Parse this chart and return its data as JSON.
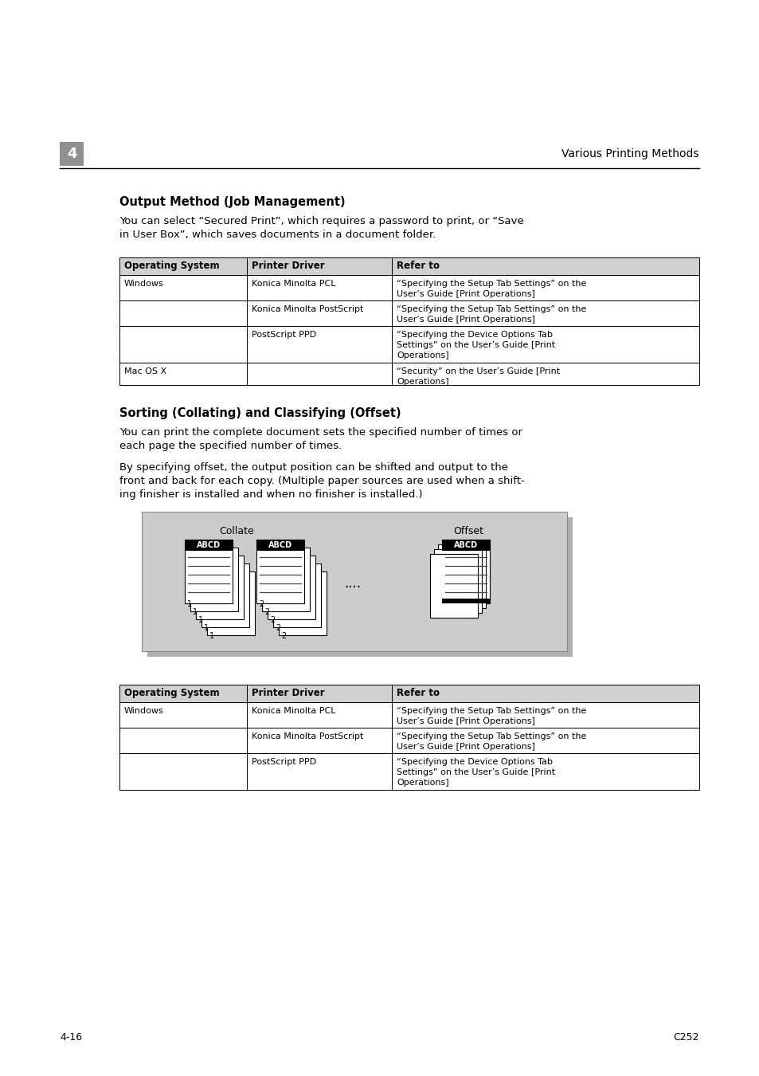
{
  "page_bg": "#ffffff",
  "chapter_num": "4",
  "chapter_title": "Various Printing Methods",
  "section1_title": "Output Method (Job Management)",
  "section1_body1a": "You can select “Secured Print”, which requires a password to print, or “Save",
  "section1_body1b": "in User Box”, which saves documents in a document folder.",
  "table1_headers": [
    "Operating System",
    "Printer Driver",
    "Refer to"
  ],
  "table1_rows": [
    [
      "Windows",
      "Konica Minolta PCL",
      "“Specifying the Setup Tab Settings” on the\nUser’s Guide [Print Operations]"
    ],
    [
      "",
      "Konica Minolta PostScript",
      "“Specifying the Setup Tab Settings” on the\nUser’s Guide [Print Operations]"
    ],
    [
      "",
      "PostScript PPD",
      "“Specifying the Device Options Tab\nSettings” on the User’s Guide [Print\nOperations]"
    ],
    [
      "Mac OS X",
      "",
      "“Security” on the User’s Guide [Print\nOperations]"
    ]
  ],
  "section2_title": "Sorting (Collating) and Classifying (Offset)",
  "section2_body1a": "You can print the complete document sets the specified number of times or",
  "section2_body1b": "each page the specified number of times.",
  "section2_body2a": "By specifying offset, the output position can be shifted and output to the",
  "section2_body2b": "front and back for each copy. (Multiple paper sources are used when a shift-",
  "section2_body2c": "ing finisher is installed and when no finisher is installed.)",
  "diagram_label_collate": "Collate",
  "diagram_label_offset": "Offset",
  "table2_headers": [
    "Operating System",
    "Printer Driver",
    "Refer to"
  ],
  "table2_rows": [
    [
      "Windows",
      "Konica Minolta PCL",
      "“Specifying the Setup Tab Settings” on the\nUser’s Guide [Print Operations]"
    ],
    [
      "",
      "Konica Minolta PostScript",
      "“Specifying the Setup Tab Settings” on the\nUser’s Guide [Print Operations]"
    ],
    [
      "",
      "PostScript PPD",
      "“Specifying the Device Options Tab\nSettings” on the User’s Guide [Print\nOperations]"
    ]
  ],
  "footer_left": "4-16",
  "footer_right": "C252"
}
